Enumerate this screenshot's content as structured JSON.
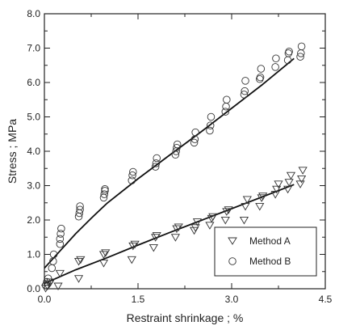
{
  "chart_data": {
    "type": "scatter",
    "title": "",
    "xlabel": "Restraint shrinkage ; %",
    "ylabel": "Stress ; MPa",
    "xlim": [
      0,
      4.5
    ],
    "ylim": [
      0,
      8
    ],
    "x_ticks": [
      0,
      1.5,
      3,
      4.5
    ],
    "x_tick_labels": [
      "0.0",
      "1.5",
      "3.0",
      "4.5"
    ],
    "y_ticks": [
      0,
      1,
      2,
      3,
      4,
      5,
      6,
      7,
      8
    ],
    "y_tick_labels": [
      "0.0",
      "1.0",
      "2.0",
      "3.0",
      "4.0",
      "5.0",
      "6.0",
      "7.0",
      "8.0"
    ],
    "grid": false,
    "legend_position": "bottom-right",
    "series": [
      {
        "name": "Method A",
        "marker": "triangle-down",
        "points": [
          [
            0.02,
            0.02
          ],
          [
            0.05,
            0.08
          ],
          [
            0.08,
            0.15
          ],
          [
            0.1,
            0.2
          ],
          [
            0.22,
            0.08
          ],
          [
            0.25,
            0.45
          ],
          [
            0.55,
            0.3
          ],
          [
            0.55,
            0.8
          ],
          [
            0.58,
            0.85
          ],
          [
            0.95,
            0.75
          ],
          [
            0.95,
            1.0
          ],
          [
            0.98,
            1.05
          ],
          [
            1.4,
            0.85
          ],
          [
            1.42,
            1.25
          ],
          [
            1.45,
            1.3
          ],
          [
            1.75,
            1.2
          ],
          [
            1.78,
            1.5
          ],
          [
            1.8,
            1.55
          ],
          [
            2.1,
            1.5
          ],
          [
            2.12,
            1.75
          ],
          [
            2.15,
            1.8
          ],
          [
            2.4,
            1.7
          ],
          [
            2.42,
            1.78
          ],
          [
            2.45,
            1.95
          ],
          [
            2.65,
            1.85
          ],
          [
            2.68,
            2.05
          ],
          [
            2.7,
            2.1
          ],
          [
            2.9,
            2.0
          ],
          [
            2.92,
            2.25
          ],
          [
            2.95,
            2.3
          ],
          [
            3.2,
            2.0
          ],
          [
            3.22,
            2.4
          ],
          [
            3.25,
            2.6
          ],
          [
            3.45,
            2.4
          ],
          [
            3.48,
            2.65
          ],
          [
            3.5,
            2.7
          ],
          [
            3.7,
            2.75
          ],
          [
            3.72,
            2.9
          ],
          [
            3.75,
            3.05
          ],
          [
            3.9,
            2.9
          ],
          [
            3.92,
            3.1
          ],
          [
            3.95,
            3.3
          ],
          [
            4.1,
            3.05
          ],
          [
            4.12,
            3.2
          ],
          [
            4.14,
            3.45
          ]
        ]
      },
      {
        "name": "Method B",
        "marker": "circle",
        "points": [
          [
            0.02,
            0.1
          ],
          [
            0.04,
            0.2
          ],
          [
            0.06,
            0.3
          ],
          [
            0.12,
            0.6
          ],
          [
            0.14,
            0.8
          ],
          [
            0.15,
            1.0
          ],
          [
            0.25,
            1.3
          ],
          [
            0.25,
            1.45
          ],
          [
            0.26,
            1.6
          ],
          [
            0.27,
            1.75
          ],
          [
            0.55,
            2.1
          ],
          [
            0.56,
            2.2
          ],
          [
            0.57,
            2.3
          ],
          [
            0.57,
            2.4
          ],
          [
            0.95,
            2.65
          ],
          [
            0.96,
            2.75
          ],
          [
            0.97,
            2.85
          ],
          [
            0.97,
            2.9
          ],
          [
            1.4,
            3.15
          ],
          [
            1.41,
            3.3
          ],
          [
            1.42,
            3.4
          ],
          [
            1.78,
            3.55
          ],
          [
            1.79,
            3.65
          ],
          [
            1.8,
            3.8
          ],
          [
            2.1,
            3.9
          ],
          [
            2.11,
            4.0
          ],
          [
            2.12,
            4.1
          ],
          [
            2.13,
            4.2
          ],
          [
            2.4,
            4.25
          ],
          [
            2.41,
            4.35
          ],
          [
            2.42,
            4.55
          ],
          [
            2.65,
            4.6
          ],
          [
            2.66,
            4.75
          ],
          [
            2.67,
            5.0
          ],
          [
            2.9,
            5.15
          ],
          [
            2.91,
            5.3
          ],
          [
            2.92,
            5.5
          ],
          [
            3.2,
            5.65
          ],
          [
            3.21,
            5.75
          ],
          [
            3.22,
            6.05
          ],
          [
            3.45,
            6.1
          ],
          [
            3.46,
            6.15
          ],
          [
            3.47,
            6.4
          ],
          [
            3.7,
            6.45
          ],
          [
            3.71,
            6.7
          ],
          [
            3.9,
            6.65
          ],
          [
            3.91,
            6.85
          ],
          [
            3.92,
            6.9
          ],
          [
            4.1,
            6.75
          ],
          [
            4.11,
            6.85
          ],
          [
            4.12,
            7.05
          ]
        ]
      }
    ],
    "fit_lines": [
      {
        "series": "Method A",
        "points": [
          [
            0,
            0.15
          ],
          [
            0.5,
            0.55
          ],
          [
            1.0,
            0.9
          ],
          [
            1.5,
            1.27
          ],
          [
            2.0,
            1.63
          ],
          [
            2.5,
            1.98
          ],
          [
            3.0,
            2.33
          ],
          [
            3.5,
            2.68
          ],
          [
            4.0,
            3.03
          ]
        ]
      },
      {
        "series": "Method B",
        "points": [
          [
            0,
            0.6
          ],
          [
            0.25,
            1.1
          ],
          [
            0.5,
            1.6
          ],
          [
            0.75,
            2.05
          ],
          [
            1.0,
            2.48
          ],
          [
            1.5,
            3.2
          ],
          [
            2.0,
            3.88
          ],
          [
            2.5,
            4.55
          ],
          [
            3.0,
            5.25
          ],
          [
            3.5,
            5.95
          ],
          [
            4.0,
            6.7
          ]
        ]
      }
    ]
  }
}
